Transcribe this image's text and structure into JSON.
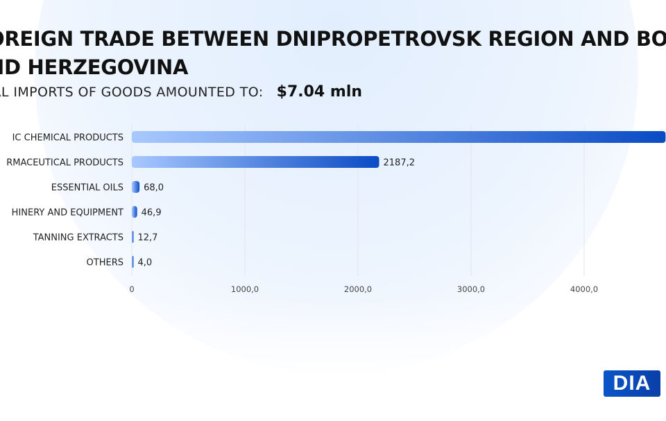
{
  "header": {
    "title_line1": "OREIGN TRADE BETWEEN DNIPROPETROVSK REGION AND BO",
    "title_line2": "ND HERZEGOVINA",
    "subtitle_label": "TAL IMPORTS OF GOODS AMOUNTED TO:",
    "subtitle_value": "$7.04  mln"
  },
  "logo": {
    "text": "DIA"
  },
  "colors": {
    "bar_start": "#a8c8ff",
    "bar_end": "#0a4bc4",
    "grid": "#e2e6ee",
    "text": "#222222"
  },
  "chart_data": {
    "type": "bar",
    "orientation": "horizontal",
    "categories": [
      "IC CHEMICAL PRODUCTS",
      "RMACEUTICAL PRODUCTS",
      "ESSENTIAL OILS",
      "HINERY AND EQUIPMENT",
      "TANNING EXTRACTS",
      "OTHERS"
    ],
    "values": [
      4720,
      2187.2,
      68.0,
      46.9,
      12.7,
      4.0
    ],
    "value_labels": [
      "",
      "2187,2",
      "68,0",
      "46,9",
      "12,7",
      "4,0"
    ],
    "x_ticks": [
      "0",
      "1000,0",
      "2000,0",
      "3000,0",
      "4000,0"
    ],
    "x_tick_values": [
      0,
      1000,
      2000,
      3000,
      4000
    ],
    "xlim": [
      0,
      4800
    ],
    "grid": true,
    "title": "",
    "xlabel": "",
    "ylabel": ""
  }
}
